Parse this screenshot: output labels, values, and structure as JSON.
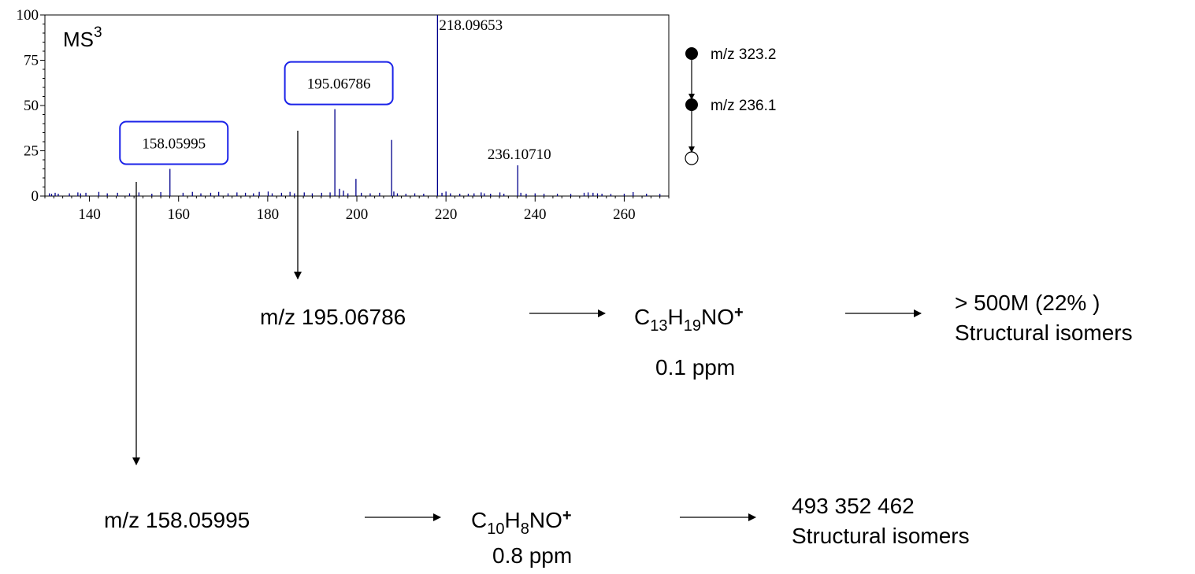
{
  "chart_data": {
    "type": "bar",
    "title": "MS",
    "title_superscript": "3",
    "xlim": [
      130,
      270
    ],
    "ylim": [
      0,
      100
    ],
    "x_ticks": [
      "140",
      "160",
      "180",
      "200",
      "220",
      "240",
      "260"
    ],
    "y_ticks": [
      "0",
      "25",
      "50",
      "75",
      "100"
    ],
    "bar_color": "#00008b",
    "peaks": [
      {
        "mz": 131.0,
        "intensity": 1.5
      },
      {
        "mz": 131.5,
        "intensity": 1.2
      },
      {
        "mz": 132.3,
        "intensity": 1.8
      },
      {
        "mz": 133.0,
        "intensity": 1.3
      },
      {
        "mz": 135.5,
        "intensity": 1.5
      },
      {
        "mz": 137.4,
        "intensity": 2.0
      },
      {
        "mz": 138.0,
        "intensity": 1.5
      },
      {
        "mz": 139.2,
        "intensity": 1.8
      },
      {
        "mz": 142.1,
        "intensity": 2.3
      },
      {
        "mz": 144.0,
        "intensity": 1.5
      },
      {
        "mz": 146.3,
        "intensity": 1.8
      },
      {
        "mz": 149.0,
        "intensity": 1.5
      },
      {
        "mz": 151.1,
        "intensity": 2.0
      },
      {
        "mz": 154.0,
        "intensity": 1.3
      },
      {
        "mz": 156.0,
        "intensity": 2.2
      },
      {
        "mz": 158.05995,
        "intensity": 15
      },
      {
        "mz": 161.0,
        "intensity": 1.8
      },
      {
        "mz": 163.1,
        "intensity": 2.3
      },
      {
        "mz": 165.0,
        "intensity": 1.5
      },
      {
        "mz": 167.2,
        "intensity": 1.8
      },
      {
        "mz": 169.0,
        "intensity": 2.3
      },
      {
        "mz": 171.1,
        "intensity": 1.5
      },
      {
        "mz": 173.1,
        "intensity": 2.0
      },
      {
        "mz": 175.0,
        "intensity": 1.8
      },
      {
        "mz": 176.8,
        "intensity": 1.5
      },
      {
        "mz": 178.1,
        "intensity": 2.3
      },
      {
        "mz": 180.1,
        "intensity": 2.5
      },
      {
        "mz": 181.0,
        "intensity": 1.5
      },
      {
        "mz": 183.1,
        "intensity": 1.8
      },
      {
        "mz": 185.0,
        "intensity": 2.3
      },
      {
        "mz": 186.0,
        "intensity": 1.5
      },
      {
        "mz": 188.2,
        "intensity": 2.0
      },
      {
        "mz": 190.0,
        "intensity": 1.5
      },
      {
        "mz": 192.1,
        "intensity": 1.8
      },
      {
        "mz": 194.0,
        "intensity": 2.0
      },
      {
        "mz": 195.06786,
        "intensity": 48
      },
      {
        "mz": 196.1,
        "intensity": 4.0
      },
      {
        "mz": 197.0,
        "intensity": 3.0
      },
      {
        "mz": 198.0,
        "intensity": 1.5
      },
      {
        "mz": 199.8,
        "intensity": 9.5
      },
      {
        "mz": 201.0,
        "intensity": 1.8
      },
      {
        "mz": 203.0,
        "intensity": 1.5
      },
      {
        "mz": 205.1,
        "intensity": 1.8
      },
      {
        "mz": 207.8,
        "intensity": 31
      },
      {
        "mz": 208.3,
        "intensity": 2.5
      },
      {
        "mz": 209.1,
        "intensity": 1.5
      },
      {
        "mz": 211.0,
        "intensity": 1.3
      },
      {
        "mz": 213.0,
        "intensity": 1.5
      },
      {
        "mz": 215.0,
        "intensity": 1.3
      },
      {
        "mz": 218.09653,
        "intensity": 100
      },
      {
        "mz": 219.1,
        "intensity": 1.8
      },
      {
        "mz": 220.0,
        "intensity": 2.5
      },
      {
        "mz": 221.0,
        "intensity": 1.5
      },
      {
        "mz": 223.1,
        "intensity": 1.3
      },
      {
        "mz": 225.0,
        "intensity": 1.3
      },
      {
        "mz": 226.3,
        "intensity": 1.5
      },
      {
        "mz": 227.9,
        "intensity": 2.0
      },
      {
        "mz": 228.6,
        "intensity": 1.5
      },
      {
        "mz": 230.0,
        "intensity": 1.3
      },
      {
        "mz": 232.1,
        "intensity": 2.0
      },
      {
        "mz": 233.0,
        "intensity": 1.3
      },
      {
        "mz": 236.1071,
        "intensity": 17
      },
      {
        "mz": 236.8,
        "intensity": 1.8
      },
      {
        "mz": 238.0,
        "intensity": 1.3
      },
      {
        "mz": 240.0,
        "intensity": 1.5
      },
      {
        "mz": 242.0,
        "intensity": 1.3
      },
      {
        "mz": 245.0,
        "intensity": 1.3
      },
      {
        "mz": 248.0,
        "intensity": 1.2
      },
      {
        "mz": 251.0,
        "intensity": 1.8
      },
      {
        "mz": 251.9,
        "intensity": 2.0
      },
      {
        "mz": 253.0,
        "intensity": 1.8
      },
      {
        "mz": 254.0,
        "intensity": 1.5
      },
      {
        "mz": 255.0,
        "intensity": 1.3
      },
      {
        "mz": 257.0,
        "intensity": 1.2
      },
      {
        "mz": 260.0,
        "intensity": 1.3
      },
      {
        "mz": 262.0,
        "intensity": 2.2
      },
      {
        "mz": 265.0,
        "intensity": 1.3
      },
      {
        "mz": 268.0,
        "intensity": 1.2
      }
    ],
    "peak_labels": [
      {
        "mz": 218.09653,
        "intensity": 100,
        "text": "218.09653",
        "boxed": false
      },
      {
        "mz": 236.1071,
        "intensity": 17,
        "text": "236.10710",
        "boxed": false
      },
      {
        "mz": 195.06786,
        "intensity": 48,
        "text": "195.06786",
        "boxed": true
      },
      {
        "mz": 158.05995,
        "intensity": 15,
        "text": "158.05995",
        "boxed": true
      }
    ]
  },
  "msn_tree": [
    {
      "label": "m/z 323.2",
      "filled": true
    },
    {
      "label": "m/z 236.1",
      "filled": true
    },
    {
      "label": "",
      "filled": false
    }
  ],
  "rows": [
    {
      "mz_text": "m/z 195.06786",
      "formula": [
        {
          "t": "C",
          "s": "normal"
        },
        {
          "t": "13",
          "s": "sub"
        },
        {
          "t": "H",
          "s": "normal"
        },
        {
          "t": "19",
          "s": "sub"
        },
        {
          "t": "NO",
          "s": "normal"
        },
        {
          "t": "+",
          "s": "sup"
        }
      ],
      "ppm": "0.1 ppm",
      "result_line1": "> 500M (22% )",
      "result_line2": "Structural isomers"
    },
    {
      "mz_text": "m/z 158.05995",
      "formula": [
        {
          "t": "C",
          "s": "normal"
        },
        {
          "t": "10",
          "s": "sub"
        },
        {
          "t": "H",
          "s": "normal"
        },
        {
          "t": "8",
          "s": "sub"
        },
        {
          "t": "NO",
          "s": "normal"
        },
        {
          "t": "+",
          "s": "sup"
        }
      ],
      "ppm": "0.8 ppm",
      "result_line1": "493 352 462",
      "result_line2": "Structural isomers"
    }
  ]
}
